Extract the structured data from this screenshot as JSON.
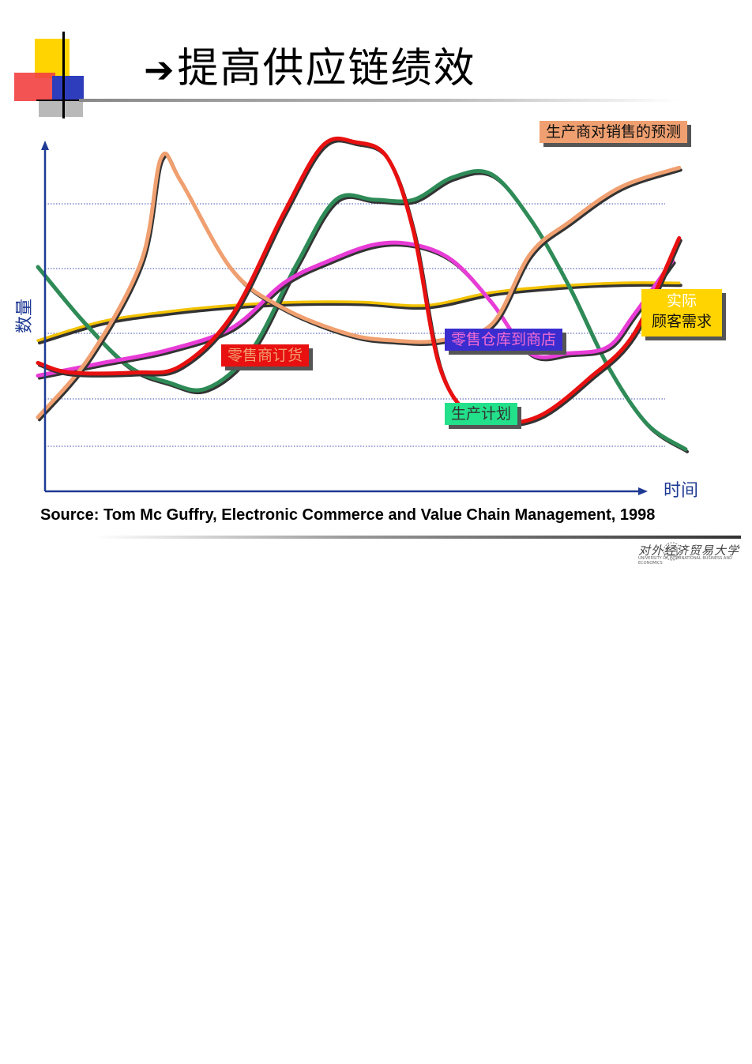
{
  "slide": {
    "title_arrow": "➔",
    "title": "提高供应链绩效",
    "source": "Source: Tom Mc Guffry, Electronic Commerce and Value Chain Management, 1998",
    "university_name": "对外经济贸易大学",
    "university_name_en": "UNIVERSITY OF INTERNATIONAL BUSINESS AND ECONOMICS"
  },
  "colors": {
    "forecast": "#F0A070",
    "demand": "#F2C200",
    "retail_order": "#E81010",
    "warehouse": "#E83CD6",
    "production": "#2E8B57",
    "axis": "#1F3A93"
  },
  "chart_data": {
    "type": "line",
    "title": "",
    "xlabel": "时间",
    "ylabel": "数量",
    "grid": true,
    "grid_style": "dotted horizontal",
    "xlim": [
      0,
      100
    ],
    "ylim": [
      0,
      100
    ],
    "tick_labels": false,
    "series": [
      {
        "name": "生产商对销售的预测",
        "color": "#F0A070",
        "x": [
          0,
          8,
          16,
          19,
          22,
          30,
          38,
          48,
          55,
          62,
          70,
          76,
          82,
          90,
          99
        ],
        "y": [
          14,
          33,
          63,
          95,
          88,
          60,
          48,
          40,
          38,
          38,
          43,
          65,
          75,
          86,
          92
        ]
      },
      {
        "name": "实际顾客需求",
        "color": "#F2C200",
        "x": [
          0,
          10,
          20,
          30,
          40,
          50,
          60,
          70,
          80,
          90,
          99
        ],
        "y": [
          38,
          44,
          47,
          49,
          50,
          50,
          49,
          53,
          55,
          56,
          56
        ]
      },
      {
        "name": "零售商订货",
        "color": "#E81010",
        "x": [
          0,
          5,
          15,
          22,
          30,
          38,
          44,
          49,
          54,
          58,
          62,
          67,
          72,
          78,
          85,
          92,
          99
        ],
        "y": [
          31,
          28,
          28,
          30,
          46,
          78,
          99,
          100,
          95,
          72,
          30,
          14,
          12,
          15,
          26,
          40,
          70
        ]
      },
      {
        "name": "零售仓库到商店",
        "color": "#E83CD6",
        "x": [
          0,
          10,
          20,
          30,
          38,
          45,
          52,
          58,
          64,
          70,
          76,
          82,
          88,
          92,
          98
        ],
        "y": [
          27,
          31,
          35,
          42,
          56,
          63,
          68,
          68,
          63,
          50,
          34,
          34,
          36,
          46,
          63
        ]
      },
      {
        "name": "生产计划",
        "color": "#2E8B57",
        "x": [
          0,
          7,
          14,
          20,
          26,
          33,
          40,
          46,
          52,
          58,
          64,
          70,
          76,
          82,
          88,
          94,
          100
        ],
        "y": [
          61,
          44,
          30,
          25,
          23,
          35,
          62,
          82,
          82,
          82,
          89,
          90,
          76,
          55,
          30,
          12,
          4
        ]
      }
    ],
    "labels": [
      {
        "text": "生产商对销售的预测",
        "series": "生产商对销售的预测"
      },
      {
        "text": "实际",
        "series": "实际顾客需求"
      },
      {
        "text": "顾客需求",
        "series": "实际顾客需求"
      },
      {
        "text": "零售商订货",
        "series": "零售商订货"
      },
      {
        "text": "零售仓库到商店",
        "series": "零售仓库到商店"
      },
      {
        "text": "生产计划",
        "series": "生产计划"
      }
    ]
  }
}
